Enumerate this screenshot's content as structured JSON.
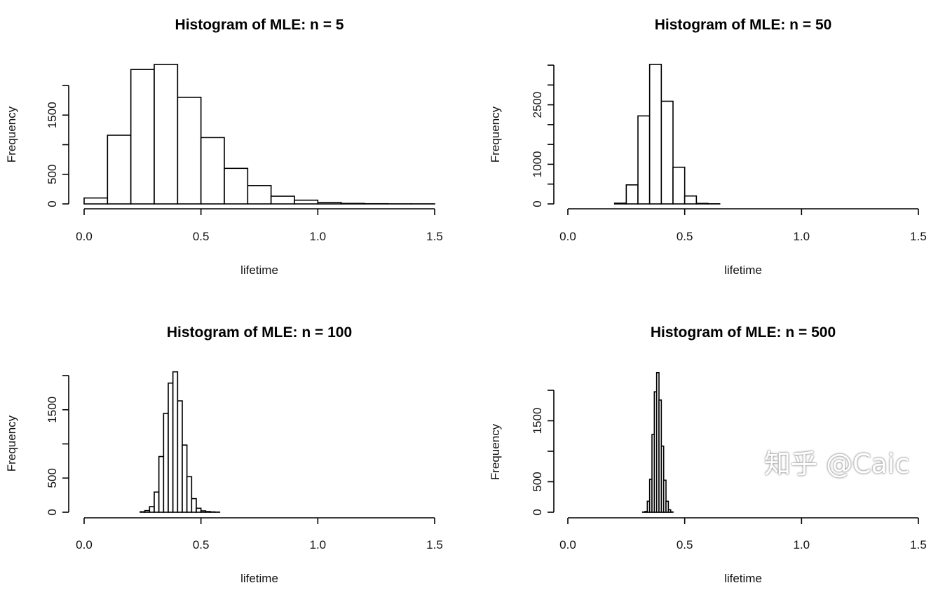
{
  "chart_data": [
    {
      "type": "bar",
      "title": "Histogram of MLE: n = 5",
      "xlabel": "lifetime",
      "ylabel": "Frequency",
      "xlim": [
        0,
        1.5
      ],
      "x_ticks": [
        "0.0",
        "0.5",
        "1.0",
        "1.5"
      ],
      "y_ticks": [
        0,
        500,
        1000,
        1500,
        2000
      ],
      "y_tick_labels": [
        "0",
        "500",
        "",
        "1500",
        ""
      ],
      "bin_start": 0.0,
      "bin_width": 0.1,
      "values": [
        100,
        1160,
        2270,
        2355,
        1800,
        1120,
        600,
        310,
        130,
        63,
        24,
        8,
        3,
        1,
        1
      ]
    },
    {
      "type": "bar",
      "title": "Histogram of MLE: n = 50",
      "xlabel": "lifetime",
      "ylabel": "Frequency",
      "xlim": [
        0,
        1.5
      ],
      "x_ticks": [
        "0.0",
        "0.5",
        "1.0",
        "1.5"
      ],
      "y_ticks": [
        0,
        500,
        1000,
        1500,
        2000,
        2500,
        3000,
        3500
      ],
      "y_tick_labels": [
        "0",
        "",
        "1000",
        "",
        "",
        "2500",
        "",
        ""
      ],
      "bin_start": 0.2,
      "bin_width": 0.05,
      "values": [
        18,
        480,
        2220,
        3520,
        2590,
        925,
        200,
        12,
        3
      ]
    },
    {
      "type": "bar",
      "title": "Histogram of MLE: n = 100",
      "xlabel": "lifetime",
      "ylabel": "Frequency",
      "xlim": [
        0,
        1.5
      ],
      "x_ticks": [
        "0.0",
        "0.5",
        "1.0",
        "1.5"
      ],
      "y_ticks": [
        0,
        500,
        1000,
        1500,
        2000
      ],
      "y_tick_labels": [
        "0",
        "500",
        "",
        "1500",
        ""
      ],
      "bin_start": 0.24,
      "bin_width": 0.02,
      "values": [
        7,
        24,
        82,
        295,
        815,
        1445,
        1890,
        2055,
        1630,
        983,
        520,
        199,
        58,
        20,
        10,
        5,
        2
      ]
    },
    {
      "type": "bar",
      "title": "Histogram of MLE: n = 500",
      "xlabel": "lifetime",
      "ylabel": "Frequency",
      "xlim": [
        0,
        1.5
      ],
      "x_ticks": [
        "0.0",
        "0.5",
        "1.0",
        "1.5"
      ],
      "y_ticks": [
        0,
        500,
        1000,
        1500,
        2000
      ],
      "y_tick_labels": [
        "0",
        "500",
        "",
        "1500",
        ""
      ],
      "bin_start": 0.32,
      "bin_width": 0.01,
      "values": [
        3,
        12,
        180,
        540,
        1275,
        1975,
        2290,
        1840,
        1085,
        525,
        180,
        40,
        5
      ]
    }
  ],
  "watermark": "知乎 @Caic"
}
